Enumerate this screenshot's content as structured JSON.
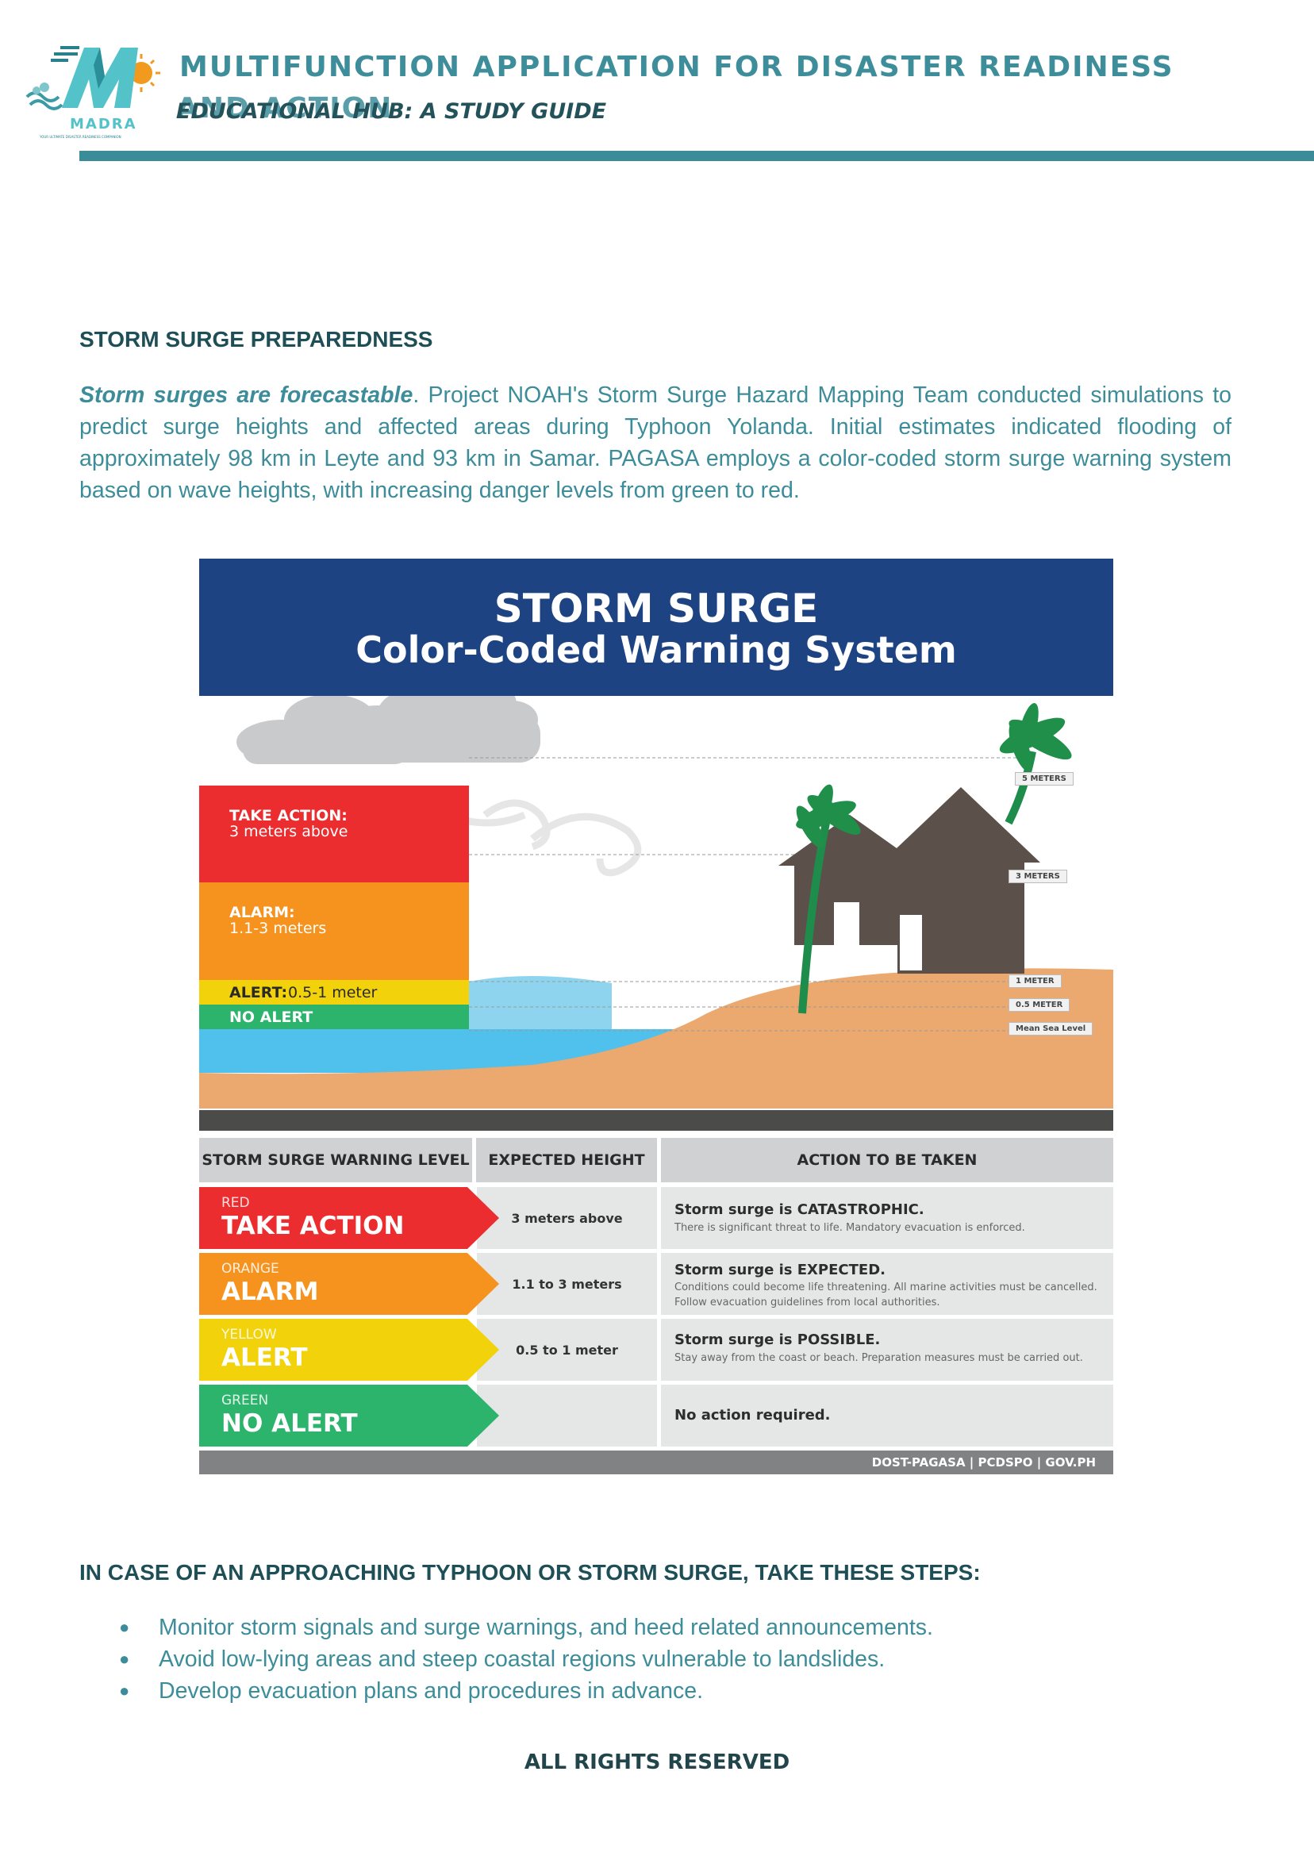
{
  "header": {
    "logo_text": "MADRA",
    "logo_tagline": "YOUR ULTIMATE DISASTER READINESS COMPANION",
    "title_line1": "MULTIFUNCTION APPLICATION FOR DISASTER READINESS",
    "title_line2": "AND ACTION",
    "subtitle": "EDUCATIONAL HUB: A STUDY GUIDE"
  },
  "colors": {
    "accent": "#3a8c98",
    "heading": "#1f4f56",
    "body_text": "#3c8d99",
    "banner": "#1e4383",
    "red": "#ec2d2f",
    "orange": "#f5931e",
    "yellow": "#f2d20a",
    "green": "#2cb36c"
  },
  "section": {
    "heading": "STORM SURGE PREPAREDNESS",
    "lead": "Storm surges are forecastable",
    "paragraph": ". Project NOAH's Storm Surge Hazard Mapping Team conducted simulations to predict surge heights and affected areas during Typhoon Yolanda. Initial estimates indicated flooding of approximately 98 km in Leyte and 93 km in Samar. PAGASA employs a color-coded storm surge warning system based on wave heights, with increasing danger levels from green to red."
  },
  "infographic": {
    "title": "STORM SURGE",
    "subtitle": "Color-Coded Warning System",
    "scene_labels": {
      "take_action": "TAKE ACTION:",
      "take_action_detail": "3 meters above",
      "alarm": "ALARM:",
      "alarm_detail": "1.1-3 meters",
      "alert": "ALERT:",
      "alert_detail": "0.5-1 meter",
      "no_alert": "NO ALERT"
    },
    "meter_tags": [
      "5 METERS",
      "3 METERS",
      "1 METER",
      "0.5 METER",
      "Mean Sea Level"
    ],
    "table_headers": [
      "STORM SURGE WARNING LEVEL",
      "EXPECTED HEIGHT",
      "ACTION TO BE TAKEN"
    ],
    "rows": [
      {
        "color_name": "RED",
        "level": "TAKE ACTION",
        "height": "3 meters above",
        "action_head": "Storm surge is CATASTROPHIC.",
        "action_desc": "There is significant threat to life. Mandatory evacuation is enforced."
      },
      {
        "color_name": "ORANGE",
        "level": "ALARM",
        "height": "1.1 to 3 meters",
        "action_head": "Storm surge is EXPECTED.",
        "action_desc": "Conditions could become life threatening. All marine activities must be cancelled. Follow evacuation guidelines from local authorities."
      },
      {
        "color_name": "YELLOW",
        "level": "ALERT",
        "height": "0.5 to 1 meter",
        "action_head": "Storm surge is POSSIBLE.",
        "action_desc": "Stay away from the coast or beach. Preparation measures must be carried out."
      },
      {
        "color_name": "GREEN",
        "level": "NO ALERT",
        "height": "",
        "action_head": "No action required.",
        "action_desc": ""
      }
    ],
    "credit": "DOST-PAGASA | PCDSPO | GOV.PH"
  },
  "steps": {
    "heading": "IN CASE OF AN APPROACHING TYPHOON OR STORM SURGE, TAKE THESE STEPS:",
    "items": [
      "Monitor storm signals and surge warnings, and heed related announcements.",
      "Avoid low-lying areas and steep coastal regions vulnerable to landslides.",
      "Develop evacuation plans and procedures in advance."
    ]
  },
  "footer": {
    "text": "ALL RIGHTS RESERVED"
  }
}
